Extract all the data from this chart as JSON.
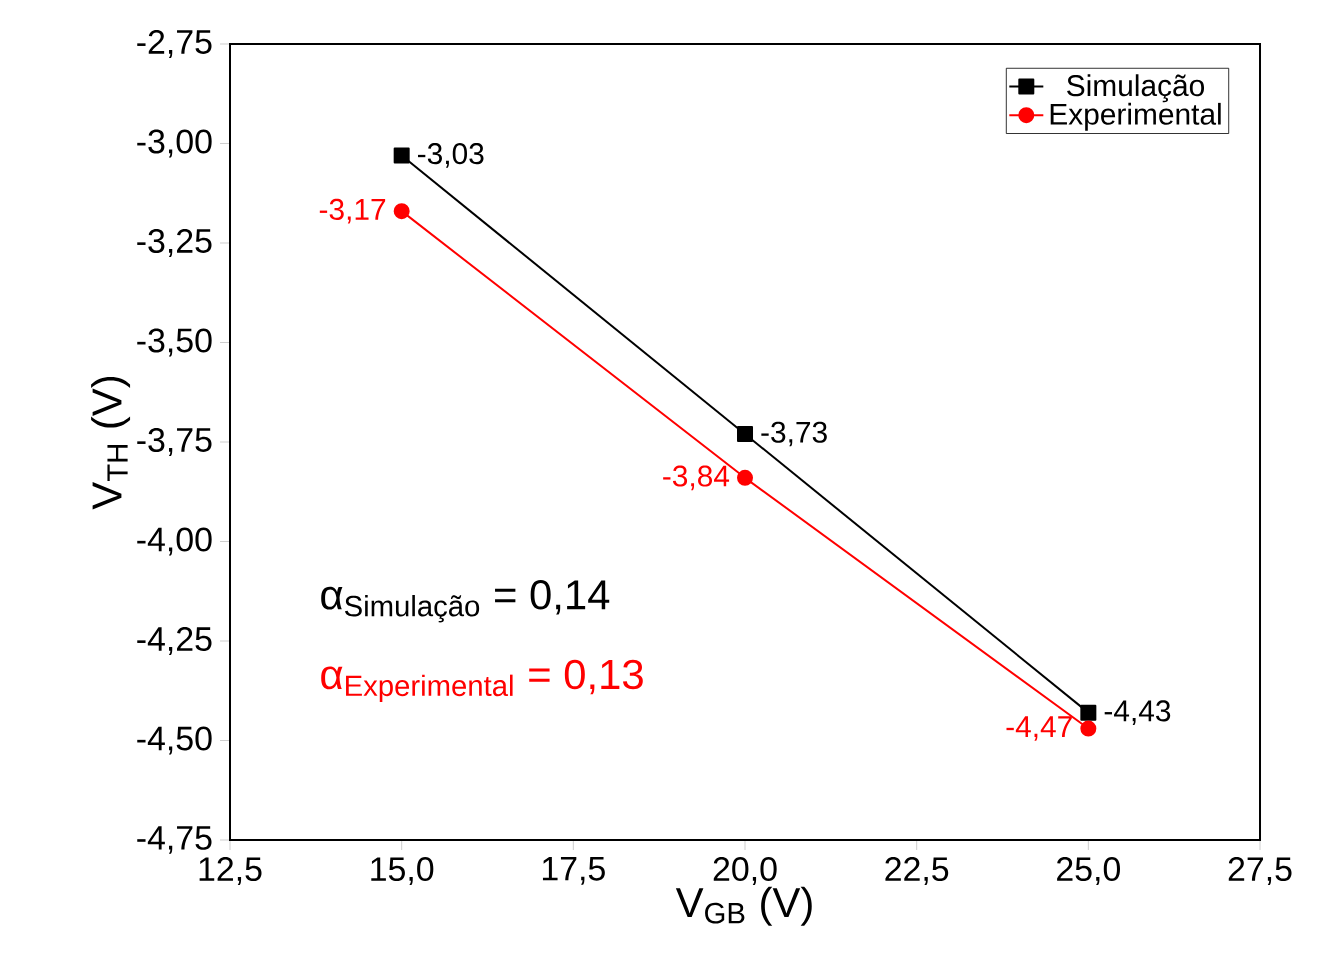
{
  "chart_data": {
    "type": "line",
    "xlabel": "V$_{GB}$ (V)",
    "ylabel": "V$_{TH}$ (V)",
    "x": [
      15,
      20,
      25
    ],
    "series": [
      {
        "name": "Simulação",
        "color": "#000000",
        "marker": "square",
        "values": [
          -3.03,
          -3.73,
          -4.43
        ],
        "value_labels": [
          "-3,03",
          "-3,73",
          "-4,43"
        ]
      },
      {
        "name": "Experimental",
        "color": "#ff0000",
        "marker": "circle",
        "values": [
          -3.17,
          -3.84,
          -4.47
        ],
        "value_labels": [
          "-3,17",
          "-3,84",
          "-4,47"
        ]
      }
    ],
    "xlim": [
      12.5,
      27.5
    ],
    "xticks": [
      {
        "value": 12.5,
        "label": "12,5"
      },
      {
        "value": 15,
        "label": "15,0"
      },
      {
        "value": 17.5,
        "label": "17,5"
      },
      {
        "value": 20,
        "label": "20,0"
      },
      {
        "value": 22.5,
        "label": "22,5"
      },
      {
        "value": 25,
        "label": "25,0"
      },
      {
        "value": 27.5,
        "label": "27,5"
      }
    ],
    "ylim": [
      -4.75,
      -2.75
    ],
    "yticks": [
      {
        "value": -4.75,
        "label": "-4,75"
      },
      {
        "value": -4.5,
        "label": "-4,50"
      },
      {
        "value": -4.25,
        "label": "-4,25"
      },
      {
        "value": -4,
        "label": "-4,00"
      },
      {
        "value": -3.75,
        "label": "-3,75"
      },
      {
        "value": -3.5,
        "label": "-3,50"
      },
      {
        "value": -3.25,
        "label": "-3,25"
      },
      {
        "value": -3,
        "label": "-3,00"
      },
      {
        "value": -2.75,
        "label": "-2,75"
      }
    ],
    "legend": "top right",
    "grid": false,
    "line_style": "solid",
    "annotations": [
      "\\text{α}_{\\text{Simulação}}\\text{ = 0,14}",
      "\\text{α}_{\\text{Experimental}}\\text{ = 0,13}"
    ]
  }
}
